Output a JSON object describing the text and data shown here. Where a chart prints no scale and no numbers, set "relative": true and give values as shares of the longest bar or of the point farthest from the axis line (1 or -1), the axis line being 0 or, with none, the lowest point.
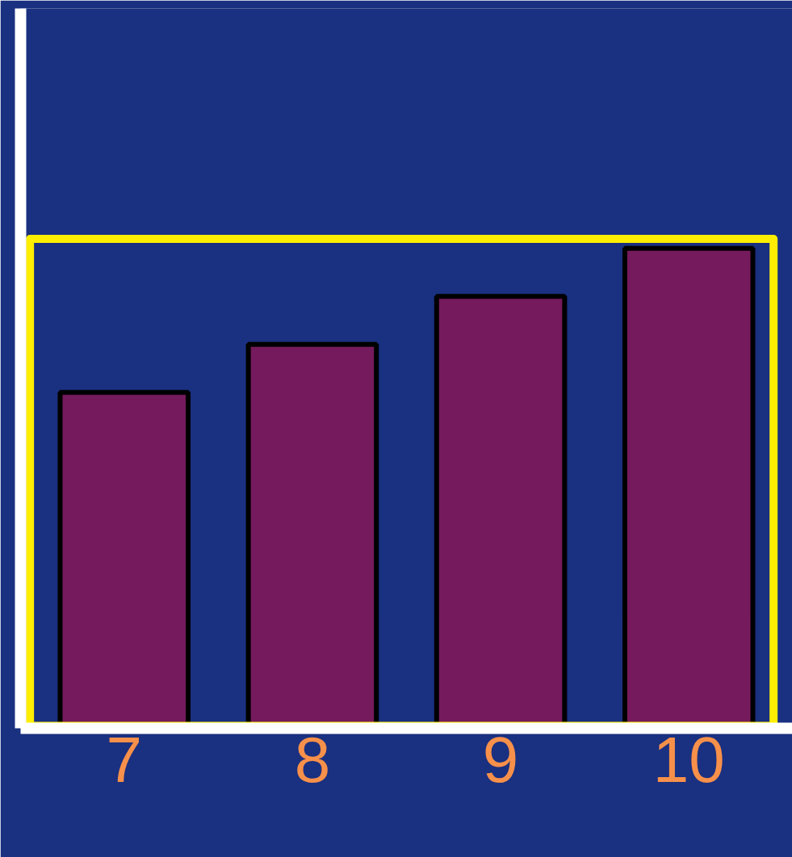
{
  "chart_data": {
    "type": "bar",
    "relative": true,
    "categories": [
      "7",
      "8",
      "9",
      "10"
    ],
    "values": [
      0.7,
      0.8,
      0.9,
      1
    ],
    "color": "#751a5c",
    "grid": false
  }
}
